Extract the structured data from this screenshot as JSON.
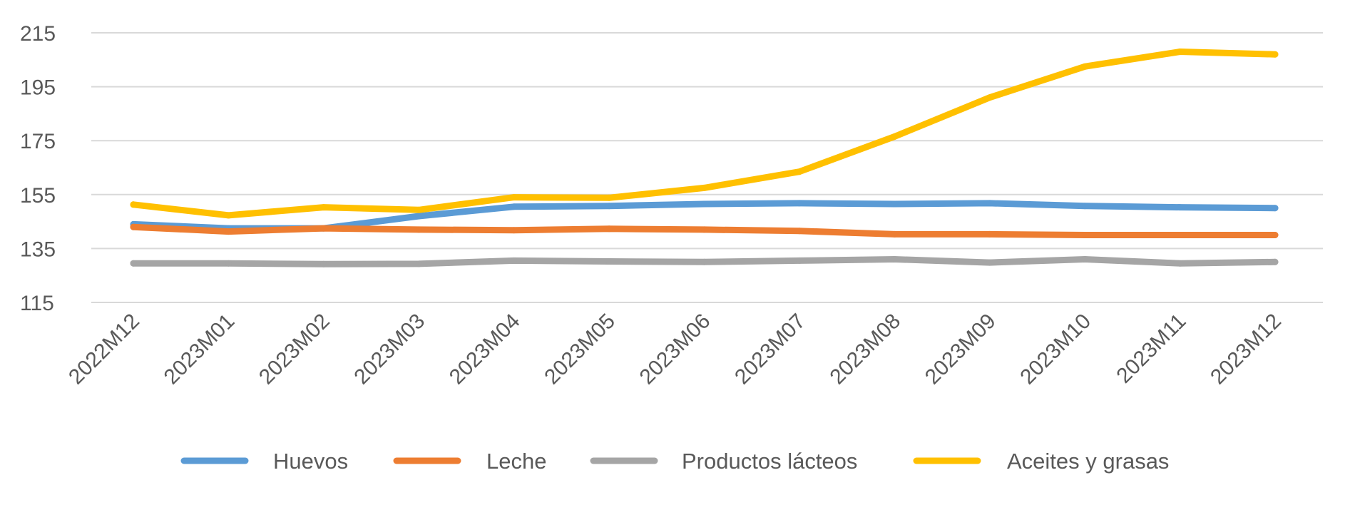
{
  "chart_data": {
    "type": "line",
    "title": "",
    "xlabel": "",
    "ylabel": "",
    "categories": [
      "2022M12",
      "2023M01",
      "2023M02",
      "2023M03",
      "2023M04",
      "2023M05",
      "2023M06",
      "2023M07",
      "2023M08",
      "2023M09",
      "2023M10",
      "2023M11",
      "2023M12"
    ],
    "y_ticks": [
      115,
      135,
      155,
      175,
      195,
      215
    ],
    "ylim": [
      115,
      215
    ],
    "grid": true,
    "legend": "bottom",
    "series": [
      {
        "name": "Huevos",
        "color": "#5b9bd5",
        "values": [
          144,
          142.5,
          142.5,
          147,
          150.5,
          150.8,
          151.5,
          151.8,
          151.5,
          151.8,
          150.8,
          150.3,
          150
        ]
      },
      {
        "name": "Leche",
        "color": "#ed7d31",
        "values": [
          143,
          141.3,
          142.5,
          142,
          141.8,
          142.3,
          142,
          141.5,
          140.3,
          140.3,
          140,
          140,
          140
        ]
      },
      {
        "name": "Productos lácteos",
        "color": "#a5a5a5",
        "values": [
          129.5,
          129.5,
          129.2,
          129.3,
          130.5,
          130.2,
          130,
          130.5,
          131,
          129.8,
          131,
          129.5,
          130
        ]
      },
      {
        "name": "Aceites y grasas",
        "color": "#ffc000",
        "values": [
          151.3,
          147.3,
          150.3,
          149.3,
          154,
          153.8,
          157.5,
          163.5,
          176.5,
          191,
          202.5,
          208,
          207
        ]
      }
    ]
  }
}
